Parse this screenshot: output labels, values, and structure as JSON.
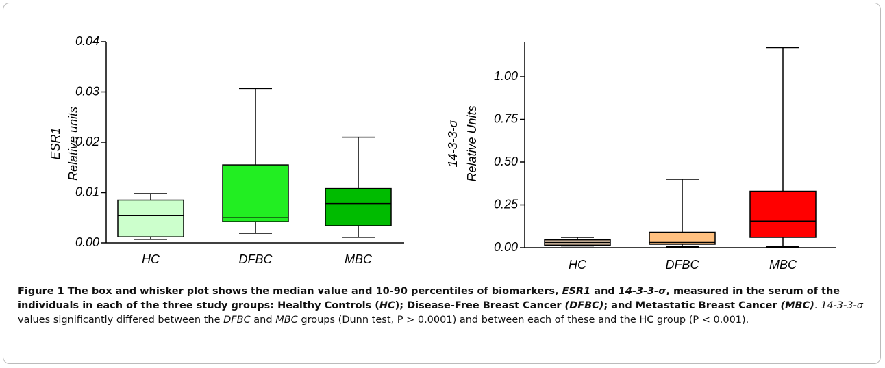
{
  "chart_data": [
    {
      "type": "box",
      "ylabel": [
        "ESR1",
        "Relative units"
      ],
      "categories": [
        "HC",
        "DFBC",
        "MBC"
      ],
      "colors": [
        "#ccffcc",
        "#22ee22",
        "#00bb00"
      ],
      "whisker_low": [
        0.0007,
        0.0019,
        0.0011
      ],
      "q1": [
        0.0012,
        0.0042,
        0.0034
      ],
      "median": [
        0.0054,
        0.005,
        0.0078
      ],
      "q3": [
        0.0085,
        0.0155,
        0.0108
      ],
      "whisker_high": [
        0.0098,
        0.0307,
        0.021
      ],
      "ylim": [
        0,
        0.04
      ],
      "yticks": [
        {
          "value": 0,
          "label": "0.00"
        },
        {
          "value": 0.01,
          "label": "0.01"
        },
        {
          "value": 0.02,
          "label": "0.02"
        },
        {
          "value": 0.03,
          "label": "0.03"
        },
        {
          "value": 0.04,
          "label": "0.04"
        }
      ]
    },
    {
      "type": "box",
      "ylabel": [
        "14-3-3-σ",
        "Relative Units"
      ],
      "categories": [
        "HC",
        "DFBC",
        "MBC"
      ],
      "colors": [
        "#ffe0c0",
        "#ffc080",
        "#ff0000"
      ],
      "whisker_low": [
        0.01,
        0.005,
        0.005
      ],
      "q1": [
        0.015,
        0.02,
        0.06
      ],
      "median": [
        0.03,
        0.03,
        0.155
      ],
      "q3": [
        0.045,
        0.09,
        0.33
      ],
      "whisker_high": [
        0.06,
        0.4,
        1.17
      ],
      "ylim": [
        0,
        1.2
      ],
      "yticks": [
        {
          "value": 0,
          "label": "0.00"
        },
        {
          "value": 0.25,
          "label": "0.25"
        },
        {
          "value": 0.5,
          "label": "0.50"
        },
        {
          "value": 0.75,
          "label": "0.75"
        },
        {
          "value": 1,
          "label": "1.00"
        }
      ]
    }
  ],
  "caption": [
    {
      "text": "Figure 1",
      "bold": true
    },
    {
      "text": " The box and whisker plot shows the median value and 10-90 percentiles of biomarkers, ",
      "bold": true
    },
    {
      "text": "ESR1",
      "bold": true,
      "italic": true
    },
    {
      "text": " and ",
      "bold": true
    },
    {
      "text": "14-3-3-σ",
      "bold": true,
      "italic": true
    },
    {
      "text": ", measured in the serum of the individuals in each of the three study groups: Healthy Controls (",
      "bold": true
    },
    {
      "text": "HC",
      "bold": true,
      "italic": true
    },
    {
      "text": "); Disease-Free Breast Cancer ",
      "bold": true
    },
    {
      "text": "(DFBC)",
      "bold": true,
      "italic": true
    },
    {
      "text": "; and Metastatic Breast Cancer ",
      "bold": true
    },
    {
      "text": "(MBC)",
      "bold": true,
      "italic": true
    },
    {
      "text": ". "
    },
    {
      "text": "14-3-3-σ",
      "italic": true
    },
    {
      "text": " values significantly differed between the "
    },
    {
      "text": "DFBC",
      "italic": true
    },
    {
      "text": " and "
    },
    {
      "text": "MBC",
      "italic": true
    },
    {
      "text": " groups (Dunn test, P > 0.0001) and between each of these and the HC group (P < 0.001)."
    }
  ]
}
